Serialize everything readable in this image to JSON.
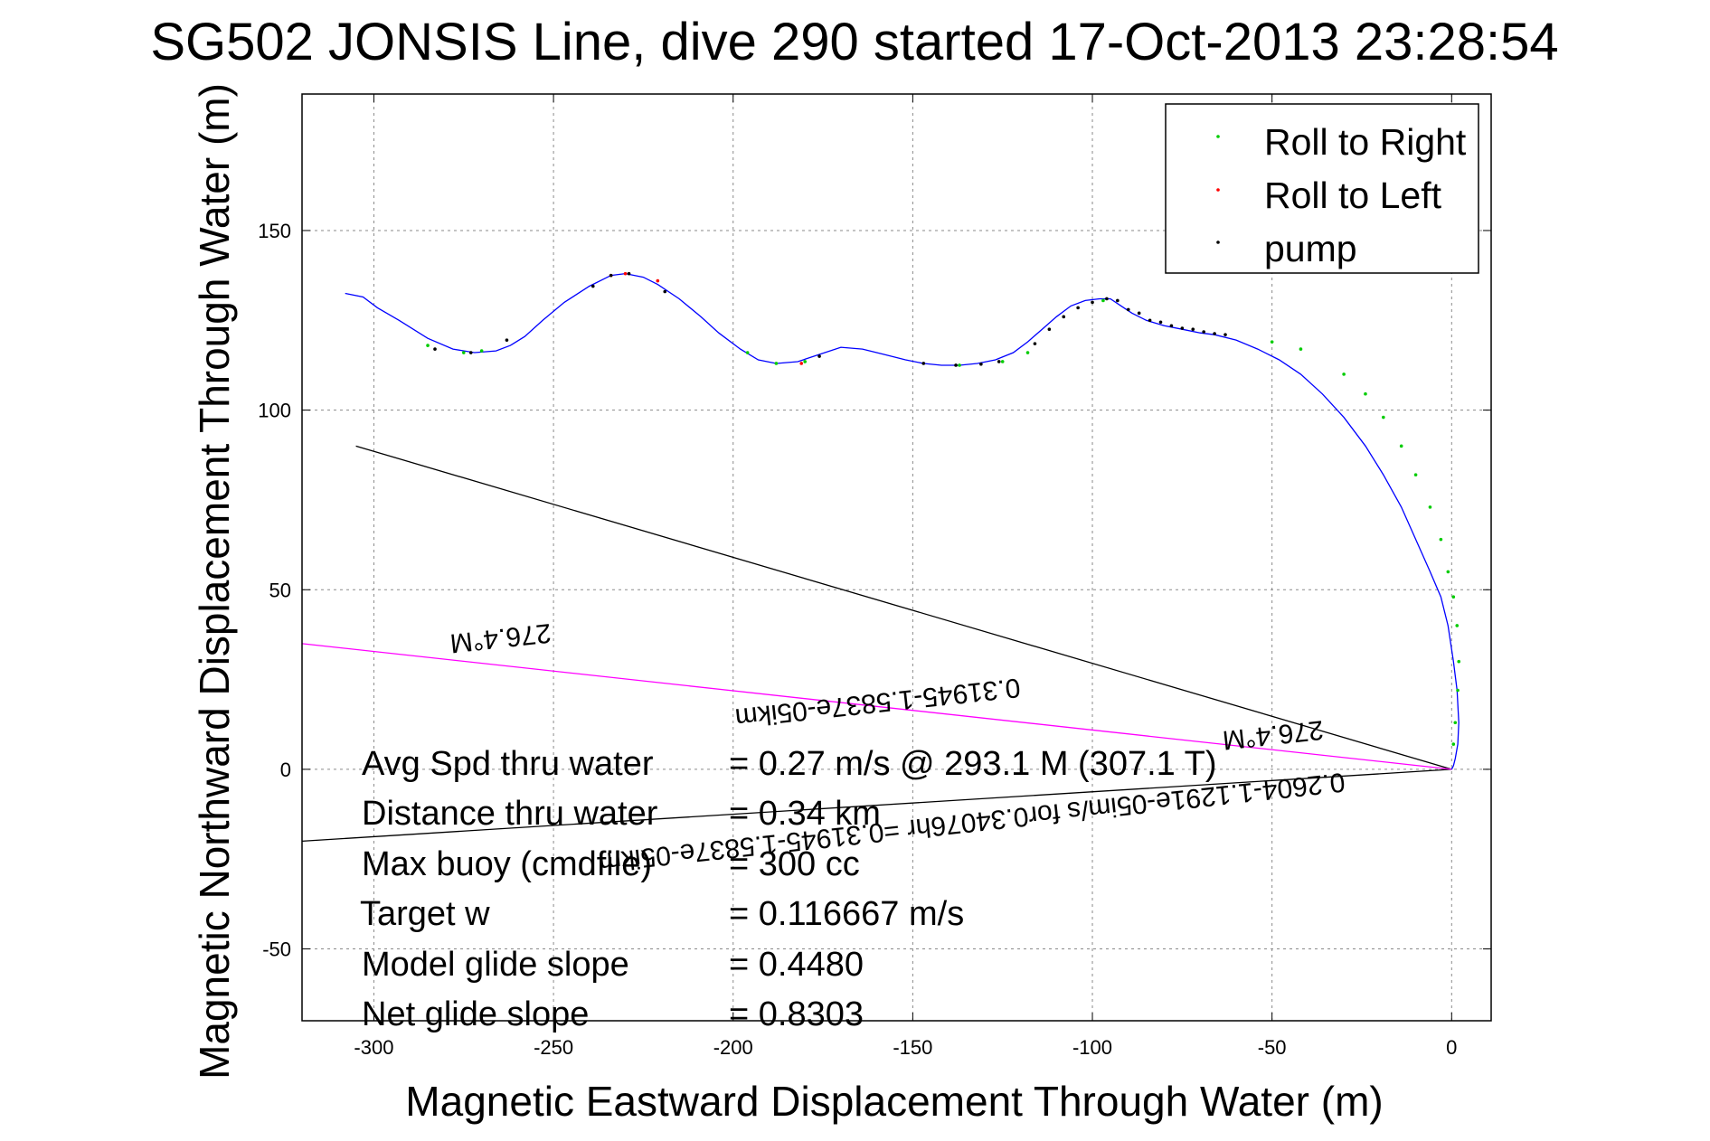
{
  "chart_data": {
    "type": "scatter",
    "title": "SG502 JONSIS Line, dive 290 started 17-Oct-2013 23:28:54",
    "xlabel": "Magnetic Eastward Displacement Through Water (m)",
    "ylabel": "Magnetic Northward Displacement Through Water (m)",
    "xlim": [
      -320,
      11
    ],
    "ylim": [
      -70,
      188
    ],
    "xticks": [
      -300,
      -250,
      -200,
      -150,
      -100,
      -50,
      0
    ],
    "yticks": [
      -50,
      0,
      50,
      100,
      150
    ],
    "grid": true,
    "legend_position": "top-right",
    "legend": [
      {
        "label": "Roll to Right",
        "color": "#00cc00"
      },
      {
        "label": "Roll to Left",
        "color": "#ff0000"
      },
      {
        "label": "pump",
        "color": "#000000"
      }
    ],
    "track": {
      "name": "track",
      "color": "#0000ff",
      "x": [
        -308,
        -303,
        -299,
        -293,
        -285,
        -278,
        -272,
        -266,
        -262,
        -258,
        -253,
        -247,
        -240,
        -234,
        -230,
        -225,
        -221,
        -215,
        -209,
        -204,
        -198,
        -193,
        -188,
        -182,
        -176,
        -170,
        -164,
        -158,
        -152,
        -147,
        -142,
        -137,
        -132,
        -127,
        -122,
        -118,
        -114,
        -110,
        -106,
        -102,
        -98,
        -95,
        -92,
        -89,
        -85,
        -80,
        -75,
        -70,
        -66,
        -60,
        -54,
        -48,
        -42,
        -36,
        -30,
        -24,
        -19,
        -14,
        -10,
        -6,
        -3,
        -1,
        0.5,
        1.5,
        2,
        1.7,
        1,
        0.5,
        0
      ],
      "y": [
        132.5,
        131.5,
        128.5,
        125,
        120,
        117,
        116,
        116.5,
        118,
        120.5,
        125,
        130,
        134.5,
        137.5,
        138,
        137,
        135,
        131,
        126,
        121.5,
        117,
        114,
        113,
        113.5,
        115.5,
        117.5,
        117,
        115.5,
        114,
        113,
        112.5,
        112.5,
        113,
        114,
        116,
        119,
        122.5,
        126,
        129,
        130.5,
        131,
        131,
        129,
        127,
        125,
        123.5,
        122.5,
        121.5,
        121,
        119.5,
        117,
        114,
        110,
        104.5,
        98,
        90,
        82,
        73,
        64,
        55,
        48,
        40,
        30,
        22,
        13,
        7,
        3,
        1,
        0
      ]
    },
    "roll_right_x": [
      -285,
      -275,
      -270,
      -196,
      -188,
      -180,
      -137,
      -125,
      -118,
      -97,
      -50,
      -42,
      -30,
      -24,
      -19,
      -14,
      -10,
      -6,
      -3,
      -1,
      0.5,
      1.5,
      2,
      1.7,
      1,
      0.5
    ],
    "roll_right_y": [
      118,
      116,
      116.5,
      116,
      113,
      113.5,
      112.5,
      113.5,
      116,
      130.5,
      119,
      117,
      110,
      104.5,
      98,
      90,
      82,
      73,
      64,
      55,
      48,
      40,
      30,
      22,
      13,
      7
    ],
    "roll_left_x": [
      -234,
      -230,
      -221,
      -181
    ],
    "roll_left_y": [
      137.5,
      138,
      136,
      113
    ],
    "pump_x": [
      -283,
      -273,
      -263,
      -239,
      -234,
      -229,
      -219,
      -176,
      -147,
      -138,
      -131,
      -126,
      -116,
      -112,
      -108,
      -104,
      -100,
      -96,
      -93,
      -90,
      -87,
      -84,
      -81,
      -78,
      -75,
      -72,
      -69,
      -66,
      -63
    ],
    "pump_y": [
      117,
      116,
      119.5,
      134.5,
      137.5,
      138,
      133,
      115,
      113,
      112.5,
      112.8,
      113.5,
      118.5,
      122.5,
      126,
      128.5,
      130,
      131,
      130.5,
      128,
      127,
      125,
      124.5,
      123.5,
      122.8,
      122.5,
      121.8,
      121.3,
      121
    ],
    "reference_lines": [
      {
        "name": "upper-black-line",
        "color": "#000000",
        "x": [
          0,
          -305
        ],
        "y": [
          0,
          90
        ]
      },
      {
        "name": "lower-black-line",
        "color": "#000000",
        "x": [
          0,
          -320
        ],
        "y": [
          0,
          -20
        ]
      },
      {
        "name": "magenta-line",
        "color": "#ff00ff",
        "x": [
          0,
          -320
        ],
        "y": [
          0,
          35
        ]
      }
    ],
    "annotations": {
      "stats": [
        {
          "label": "Avg Spd thru water",
          "value": "=  0.27 m/s @ 293.1  M (307.1 T)"
        },
        {
          "label": "Distance thru water",
          "value": "=  0.34 km"
        },
        {
          "label": "Max buoy (cmdfile)",
          "value": "= 300 cc"
        },
        {
          "label": "Target w",
          "value": "= 0.116667 m/s"
        },
        {
          "label": "Model glide slope",
          "value": "= 0.4480"
        },
        {
          "label": "Net glide slope",
          "value": "= 0.8303"
        }
      ],
      "rotated": [
        {
          "text": "276.4°M"
        },
        {
          "text": "0.31945-1.5837e-05ikm"
        },
        {
          "text": "276.4°M"
        },
        {
          "text": "0.2604-1.1291e-05im/s for0.34076hr =0.31945-1.5837e-05ikm"
        }
      ]
    }
  }
}
